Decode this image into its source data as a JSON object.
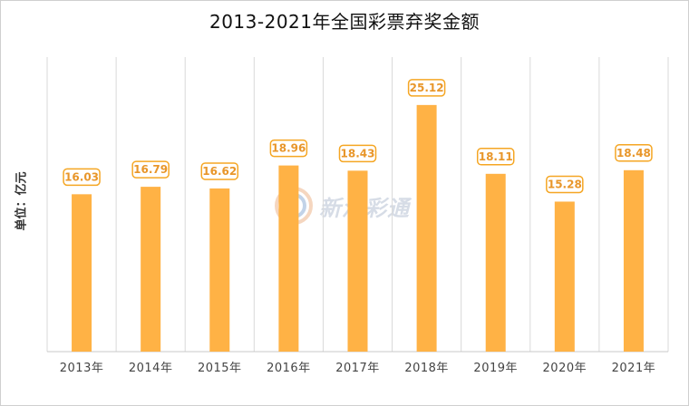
{
  "title": "2013-2021年全国彩票弃奖金额",
  "watermark": "新浪彩通",
  "colors": {
    "bar": "#FFB245",
    "label_border": "#F5A623",
    "label_text": "#E8962A",
    "grid": "#d9d9d9",
    "axis": "#c8c8c8"
  },
  "chart_data": {
    "type": "bar",
    "title": "2013-2021年全国彩票弃奖金额",
    "xlabel": "",
    "ylabel": "单位：亿元",
    "categories": [
      "2013年",
      "2014年",
      "2015年",
      "2016年",
      "2017年",
      "2018年",
      "2019年",
      "2020年",
      "2021年"
    ],
    "values": [
      16.03,
      16.79,
      16.62,
      18.96,
      18.43,
      25.12,
      18.11,
      15.28,
      18.48
    ],
    "value_labels": [
      "16.03",
      "16.79",
      "16.62",
      "18.96",
      "18.43",
      "25.12",
      "18.11",
      "15.28",
      "18.48"
    ],
    "ylim": [
      0,
      30
    ],
    "grid": "vertical",
    "legend": "none"
  }
}
